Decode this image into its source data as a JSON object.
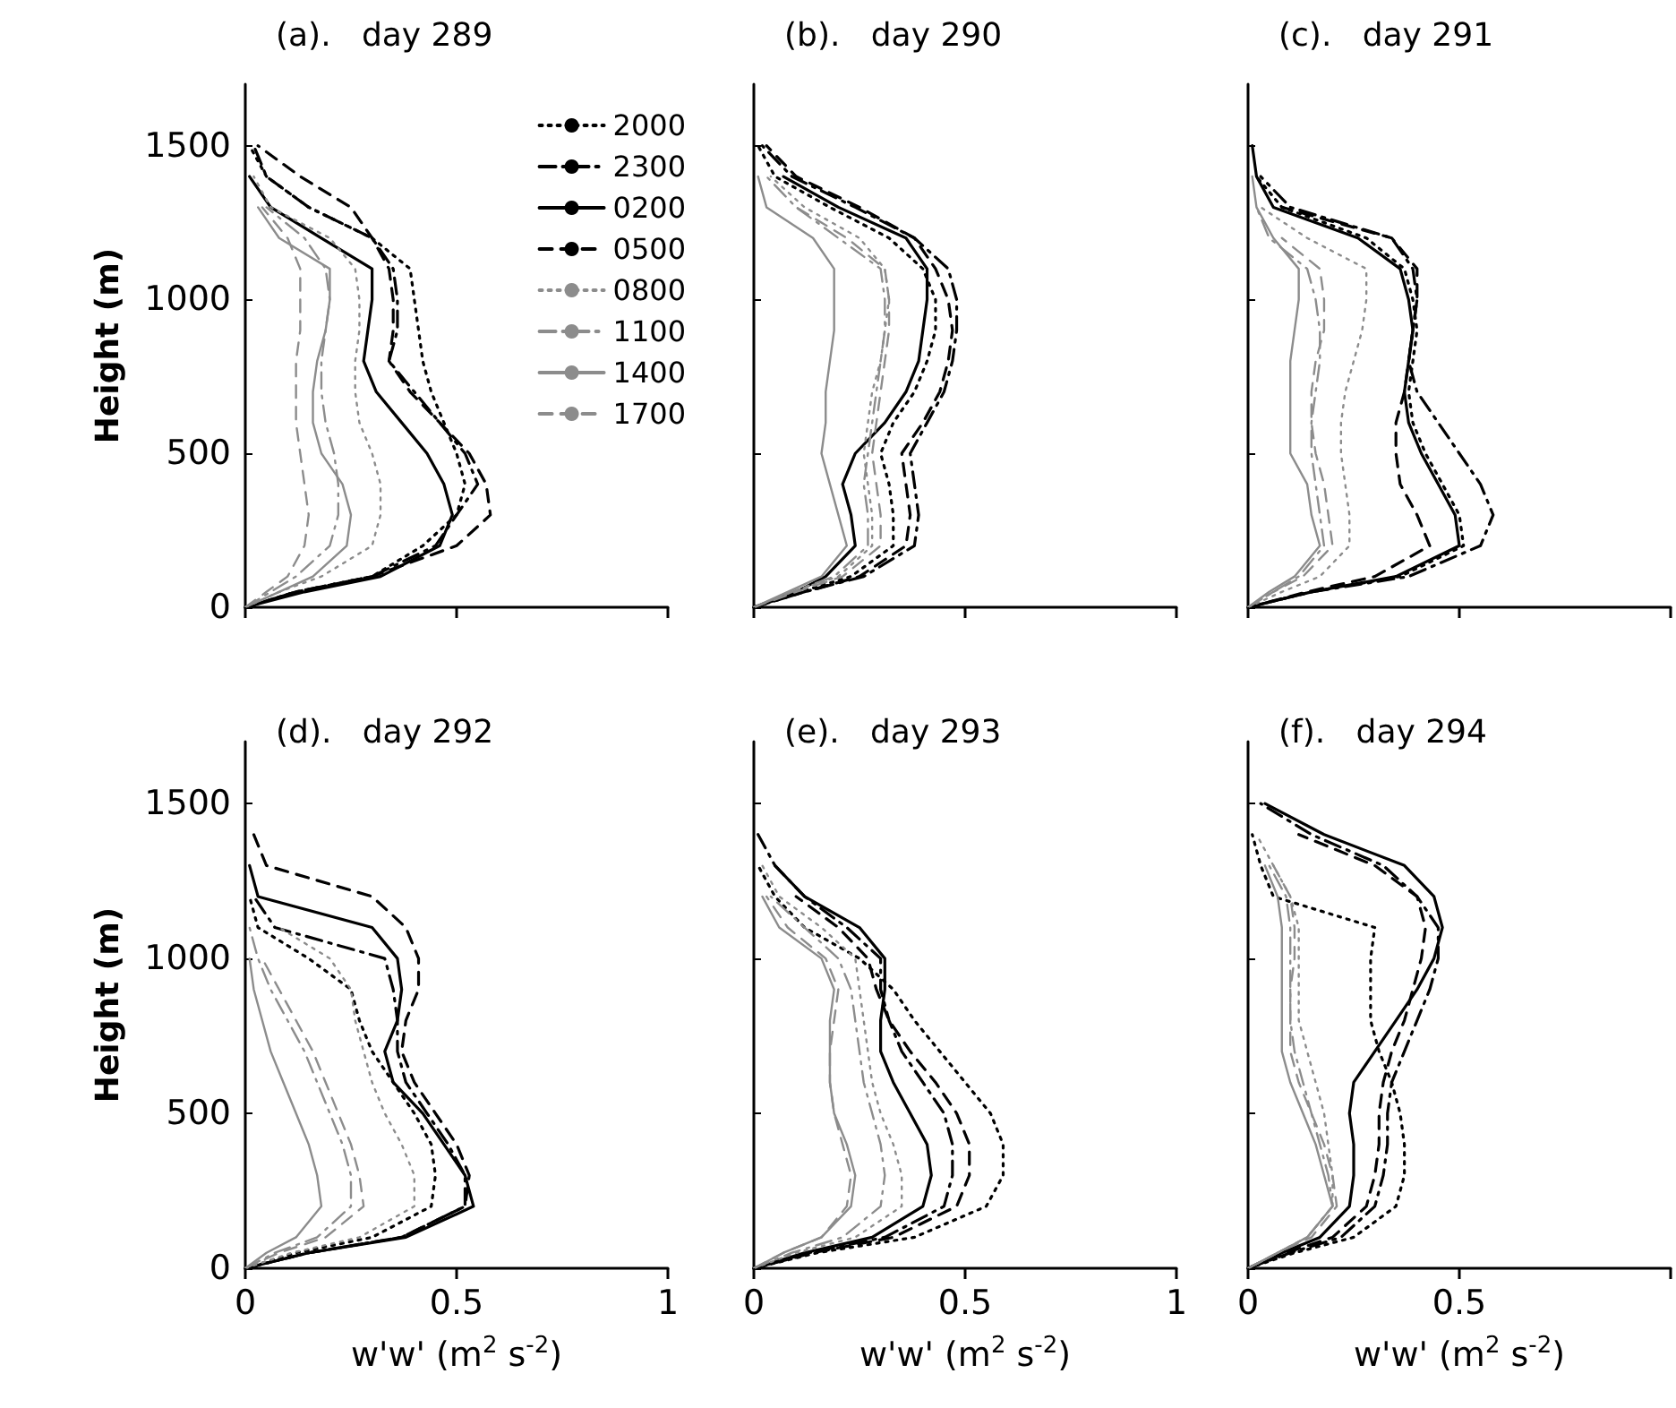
{
  "chart_data": [
    {
      "type": "line",
      "title": "(a).   day 289",
      "ylabel": "Height (m)",
      "xlim": [
        0,
        1
      ],
      "xticks": [
        0,
        0.5,
        1
      ],
      "ylim": [
        0,
        1700
      ],
      "yticks": [
        0,
        500,
        1000,
        1500
      ],
      "tick_labels": "y",
      "legend": "top right",
      "series": [
        {
          "name": "2000",
          "color": "#000000",
          "line_style": "dotted",
          "x": [
            0,
            0.12,
            0.3,
            0.42,
            0.5,
            0.52,
            0.5,
            0.47,
            0.44,
            0.42,
            0.41,
            0.4,
            0.39,
            0.3,
            0.15,
            0.05,
            0.01
          ],
          "values": [
            0,
            50,
            100,
            200,
            300,
            400,
            500,
            600,
            700,
            800,
            900,
            1000,
            1100,
            1200,
            1300,
            1400,
            1500
          ]
        },
        {
          "name": "2300",
          "color": "#000000",
          "line_style": "dashdot",
          "x": [
            0,
            0.12,
            0.3,
            0.45,
            0.5,
            0.55,
            0.52,
            0.46,
            0.4,
            0.34,
            0.36,
            0.36,
            0.35,
            0.3,
            0.15,
            0.05,
            0.02
          ],
          "values": [
            0,
            50,
            100,
            200,
            300,
            400,
            500,
            600,
            700,
            800,
            900,
            1000,
            1100,
            1200,
            1300,
            1400,
            1500
          ]
        },
        {
          "name": "0200",
          "color": "#000000",
          "line_style": "solid",
          "x": [
            0,
            0.14,
            0.32,
            0.46,
            0.49,
            0.47,
            0.43,
            0.37,
            0.31,
            0.28,
            0.29,
            0.3,
            0.3,
            0.18,
            0.06,
            0.01
          ],
          "values": [
            0,
            50,
            100,
            200,
            300,
            400,
            500,
            600,
            700,
            800,
            900,
            1000,
            1100,
            1200,
            1300,
            1400
          ]
        },
        {
          "name": "0500",
          "color": "#000000",
          "line_style": "dashed",
          "x": [
            0,
            0.12,
            0.3,
            0.5,
            0.58,
            0.57,
            0.53,
            0.46,
            0.39,
            0.34,
            0.35,
            0.35,
            0.34,
            0.3,
            0.25,
            0.13,
            0.03
          ],
          "values": [
            0,
            50,
            100,
            200,
            300,
            400,
            500,
            600,
            700,
            800,
            900,
            1000,
            1100,
            1200,
            1300,
            1400,
            1500
          ]
        },
        {
          "name": "0800",
          "color": "#8c8c8c",
          "line_style": "dotted",
          "x": [
            0,
            0.08,
            0.18,
            0.3,
            0.32,
            0.32,
            0.3,
            0.27,
            0.26,
            0.26,
            0.27,
            0.27,
            0.26,
            0.2,
            0.06,
            0.02
          ],
          "values": [
            0,
            50,
            100,
            200,
            300,
            400,
            500,
            600,
            700,
            800,
            900,
            1000,
            1100,
            1200,
            1300,
            1400
          ]
        },
        {
          "name": "1100",
          "color": "#8c8c8c",
          "line_style": "dashdot",
          "x": [
            0,
            0.06,
            0.12,
            0.2,
            0.22,
            0.22,
            0.21,
            0.19,
            0.18,
            0.18,
            0.19,
            0.2,
            0.19,
            0.14,
            0.05
          ],
          "values": [
            0,
            50,
            100,
            200,
            300,
            400,
            500,
            600,
            700,
            800,
            900,
            1000,
            1100,
            1200,
            1300
          ]
        },
        {
          "name": "1400",
          "color": "#8c8c8c",
          "line_style": "solid",
          "x": [
            0,
            0.08,
            0.16,
            0.24,
            0.25,
            0.23,
            0.18,
            0.16,
            0.16,
            0.17,
            0.19,
            0.2,
            0.2,
            0.08,
            0.03
          ],
          "values": [
            0,
            50,
            100,
            200,
            300,
            400,
            500,
            600,
            700,
            800,
            900,
            1000,
            1100,
            1200,
            1300
          ]
        },
        {
          "name": "1700",
          "color": "#8c8c8c",
          "line_style": "dashed",
          "x": [
            0,
            0.05,
            0.1,
            0.14,
            0.15,
            0.14,
            0.13,
            0.12,
            0.12,
            0.12,
            0.13,
            0.13,
            0.13,
            0.1,
            0.04
          ],
          "values": [
            0,
            50,
            100,
            200,
            300,
            400,
            500,
            600,
            700,
            800,
            900,
            1000,
            1100,
            1200,
            1300
          ]
        }
      ]
    },
    {
      "type": "line",
      "title": "(b).   day 290",
      "xlim": [
        0,
        1
      ],
      "xticks": [
        0,
        0.5,
        1
      ],
      "ylim": [
        0,
        1700
      ],
      "yticks": [
        0,
        500,
        1000,
        1500
      ],
      "tick_labels": false,
      "series": [
        {
          "color": "#000000",
          "line_style": "dotted",
          "x": [
            0,
            0.11,
            0.23,
            0.33,
            0.33,
            0.32,
            0.3,
            0.33,
            0.38,
            0.41,
            0.43,
            0.43,
            0.4,
            0.32,
            0.18,
            0.05,
            0.01
          ],
          "values": [
            0,
            50,
            100,
            200,
            300,
            400,
            500,
            600,
            700,
            800,
            900,
            1000,
            1100,
            1200,
            1300,
            1400,
            1500
          ]
        },
        {
          "color": "#000000",
          "line_style": "dashdot",
          "x": [
            0,
            0.12,
            0.26,
            0.38,
            0.39,
            0.38,
            0.37,
            0.41,
            0.45,
            0.47,
            0.48,
            0.48,
            0.46,
            0.38,
            0.24,
            0.09,
            0.02
          ],
          "values": [
            0,
            50,
            100,
            200,
            300,
            400,
            500,
            600,
            700,
            800,
            900,
            1000,
            1100,
            1200,
            1300,
            1400,
            1500
          ]
        },
        {
          "color": "#000000",
          "line_style": "solid",
          "x": [
            0,
            0.1,
            0.17,
            0.24,
            0.23,
            0.21,
            0.24,
            0.31,
            0.36,
            0.39,
            0.4,
            0.41,
            0.41,
            0.36,
            0.2,
            0.07
          ],
          "values": [
            0,
            50,
            100,
            200,
            300,
            400,
            500,
            600,
            700,
            800,
            900,
            1000,
            1100,
            1200,
            1300,
            1400
          ]
        },
        {
          "color": "#000000",
          "line_style": "dashed",
          "x": [
            0,
            0.12,
            0.25,
            0.36,
            0.37,
            0.36,
            0.35,
            0.4,
            0.44,
            0.46,
            0.47,
            0.46,
            0.43,
            0.38,
            0.25,
            0.1,
            0.03
          ],
          "values": [
            0,
            50,
            100,
            200,
            300,
            400,
            500,
            600,
            700,
            800,
            900,
            1000,
            1100,
            1200,
            1300,
            1400,
            1500
          ]
        },
        {
          "color": "#8c8c8c",
          "line_style": "dotted",
          "x": [
            0,
            0.09,
            0.2,
            0.28,
            0.28,
            0.27,
            0.26,
            0.27,
            0.28,
            0.3,
            0.31,
            0.32,
            0.31,
            0.25,
            0.12,
            0.04
          ],
          "values": [
            0,
            50,
            100,
            200,
            300,
            400,
            500,
            600,
            700,
            800,
            900,
            1000,
            1100,
            1200,
            1300,
            1400
          ]
        },
        {
          "color": "#8c8c8c",
          "line_style": "dashdot",
          "x": [
            0,
            0.09,
            0.19,
            0.27,
            0.27,
            0.26,
            0.27,
            0.28,
            0.29,
            0.3,
            0.31,
            0.31,
            0.3,
            0.2,
            0.1,
            0.03
          ],
          "values": [
            0,
            50,
            100,
            200,
            300,
            400,
            500,
            600,
            700,
            800,
            900,
            1000,
            1100,
            1200,
            1300,
            1400
          ]
        },
        {
          "color": "#8c8c8c",
          "line_style": "solid",
          "x": [
            0,
            0.08,
            0.16,
            0.22,
            0.2,
            0.18,
            0.16,
            0.17,
            0.17,
            0.18,
            0.19,
            0.19,
            0.19,
            0.14,
            0.03,
            0.01
          ],
          "values": [
            0,
            50,
            100,
            200,
            300,
            400,
            500,
            600,
            700,
            800,
            900,
            1000,
            1100,
            1200,
            1300,
            1400
          ]
        },
        {
          "color": "#8c8c8c",
          "line_style": "dashed",
          "x": [
            0,
            0.1,
            0.21,
            0.3,
            0.3,
            0.29,
            0.28,
            0.29,
            0.3,
            0.31,
            0.32,
            0.32,
            0.31,
            0.22,
            0.1
          ],
          "values": [
            0,
            50,
            100,
            200,
            300,
            400,
            500,
            600,
            700,
            800,
            900,
            1000,
            1100,
            1200,
            1300
          ]
        }
      ]
    },
    {
      "type": "line",
      "title": "(c).   day 291",
      "xlim": [
        0,
        1
      ],
      "xticks": [
        0,
        0.5,
        1
      ],
      "ylim": [
        0,
        1700
      ],
      "yticks": [
        0,
        500,
        1000,
        1500
      ],
      "tick_labels": false,
      "series": [
        {
          "color": "#000000",
          "line_style": "dotted",
          "x": [
            0,
            0.15,
            0.36,
            0.51,
            0.5,
            0.46,
            0.42,
            0.39,
            0.38,
            0.39,
            0.4,
            0.39,
            0.37,
            0.28,
            0.08,
            0.02
          ],
          "values": [
            0,
            50,
            100,
            200,
            300,
            400,
            500,
            600,
            700,
            800,
            900,
            1000,
            1100,
            1200,
            1300,
            1400
          ]
        },
        {
          "color": "#000000",
          "line_style": "dashdot",
          "x": [
            0,
            0.15,
            0.38,
            0.55,
            0.58,
            0.55,
            0.5,
            0.45,
            0.4,
            0.38,
            0.39,
            0.4,
            0.39,
            0.34,
            0.1,
            0.03
          ],
          "values": [
            0,
            50,
            100,
            200,
            300,
            400,
            500,
            600,
            700,
            800,
            900,
            1000,
            1100,
            1200,
            1300,
            1400
          ]
        },
        {
          "color": "#000000",
          "line_style": "solid",
          "x": [
            0,
            0.15,
            0.35,
            0.5,
            0.49,
            0.45,
            0.41,
            0.38,
            0.37,
            0.38,
            0.39,
            0.38,
            0.36,
            0.26,
            0.06,
            0.02,
            0.01
          ],
          "values": [
            0,
            50,
            100,
            200,
            300,
            400,
            500,
            600,
            700,
            800,
            900,
            1000,
            1100,
            1200,
            1300,
            1400,
            1500
          ]
        },
        {
          "color": "#000000",
          "line_style": "dashed",
          "x": [
            0,
            0.14,
            0.3,
            0.43,
            0.4,
            0.36,
            0.35,
            0.35,
            0.37,
            0.38,
            0.39,
            0.4,
            0.4,
            0.34,
            0.08
          ],
          "values": [
            0,
            50,
            100,
            200,
            300,
            400,
            500,
            600,
            700,
            800,
            900,
            1000,
            1100,
            1200,
            1300
          ]
        },
        {
          "color": "#8c8c8c",
          "line_style": "dotted",
          "x": [
            0,
            0.08,
            0.17,
            0.24,
            0.24,
            0.23,
            0.22,
            0.22,
            0.23,
            0.25,
            0.27,
            0.28,
            0.28,
            0.14,
            0.03
          ],
          "values": [
            0,
            50,
            100,
            200,
            300,
            400,
            500,
            600,
            700,
            800,
            900,
            1000,
            1100,
            1200,
            1300
          ]
        },
        {
          "color": "#8c8c8c",
          "line_style": "dashdot",
          "x": [
            0,
            0.06,
            0.12,
            0.18,
            0.17,
            0.16,
            0.15,
            0.15,
            0.16,
            0.17,
            0.17,
            0.16,
            0.14,
            0.05,
            0.02
          ],
          "values": [
            0,
            50,
            100,
            200,
            300,
            400,
            500,
            600,
            700,
            800,
            900,
            1000,
            1100,
            1200,
            1300
          ]
        },
        {
          "color": "#8c8c8c",
          "line_style": "solid",
          "x": [
            0,
            0.05,
            0.11,
            0.17,
            0.15,
            0.14,
            0.1,
            0.1,
            0.1,
            0.1,
            0.11,
            0.12,
            0.12,
            0.06,
            0.02,
            0.01
          ],
          "values": [
            0,
            50,
            100,
            200,
            300,
            400,
            500,
            600,
            700,
            800,
            900,
            1000,
            1100,
            1200,
            1300,
            1400
          ]
        },
        {
          "color": "#8c8c8c",
          "line_style": "dashed",
          "x": [
            0,
            0.06,
            0.13,
            0.2,
            0.19,
            0.18,
            0.16,
            0.15,
            0.15,
            0.16,
            0.18,
            0.18,
            0.17,
            0.08
          ],
          "values": [
            0,
            50,
            100,
            200,
            300,
            400,
            500,
            600,
            700,
            800,
            900,
            1000,
            1100,
            1200
          ]
        }
      ]
    },
    {
      "type": "line",
      "title": "(d).   day 292",
      "xlabel": "w'w' (m$^{2}$ s$^{-2}$)",
      "ylabel": "Height (m)",
      "xlim": [
        0,
        1
      ],
      "xticks": [
        0,
        0.5,
        1
      ],
      "ylim": [
        0,
        1700
      ],
      "yticks": [
        0,
        500,
        1000,
        1500
      ],
      "series": [
        {
          "color": "#000000",
          "line_style": "dotted",
          "x": [
            0,
            0.12,
            0.3,
            0.44,
            0.45,
            0.44,
            0.4,
            0.35,
            0.3,
            0.27,
            0.25,
            0.15,
            0.03,
            0.01
          ],
          "values": [
            0,
            50,
            100,
            200,
            300,
            400,
            500,
            600,
            700,
            800,
            900,
            1000,
            1100,
            1200
          ]
        },
        {
          "color": "#000000",
          "line_style": "dashdot",
          "x": [
            0,
            0.15,
            0.37,
            0.52,
            0.52,
            0.48,
            0.43,
            0.38,
            0.36,
            0.36,
            0.35,
            0.33,
            0.07,
            0.02
          ],
          "values": [
            0,
            50,
            100,
            200,
            300,
            400,
            500,
            600,
            700,
            800,
            900,
            1000,
            1100,
            1200
          ]
        },
        {
          "color": "#000000",
          "line_style": "solid",
          "x": [
            0,
            0.15,
            0.38,
            0.54,
            0.52,
            0.47,
            0.42,
            0.35,
            0.33,
            0.36,
            0.37,
            0.36,
            0.3,
            0.03,
            0.01
          ],
          "values": [
            0,
            50,
            100,
            200,
            300,
            400,
            500,
            600,
            700,
            800,
            900,
            1000,
            1100,
            1200,
            1300
          ]
        },
        {
          "color": "#000000",
          "line_style": "dashed",
          "x": [
            0,
            0.15,
            0.37,
            0.52,
            0.53,
            0.5,
            0.45,
            0.4,
            0.37,
            0.38,
            0.41,
            0.41,
            0.38,
            0.3,
            0.05,
            0.02
          ],
          "values": [
            0,
            50,
            100,
            200,
            300,
            400,
            500,
            600,
            700,
            800,
            900,
            1000,
            1100,
            1200,
            1300,
            1400
          ]
        },
        {
          "color": "#8c8c8c",
          "line_style": "dotted",
          "x": [
            0,
            0.11,
            0.27,
            0.4,
            0.4,
            0.37,
            0.33,
            0.3,
            0.28,
            0.26,
            0.25,
            0.2,
            0.08
          ],
          "values": [
            0,
            50,
            100,
            200,
            300,
            400,
            500,
            600,
            700,
            800,
            900,
            1000,
            1100
          ]
        },
        {
          "color": "#8c8c8c",
          "line_style": "dashdot",
          "x": [
            0,
            0.07,
            0.17,
            0.25,
            0.25,
            0.23,
            0.2,
            0.17,
            0.14,
            0.1,
            0.06,
            0.03,
            0.01
          ],
          "values": [
            0,
            50,
            100,
            200,
            300,
            400,
            500,
            600,
            700,
            800,
            900,
            1000,
            1100
          ]
        },
        {
          "color": "#8c8c8c",
          "line_style": "solid",
          "x": [
            0,
            0.05,
            0.12,
            0.18,
            0.17,
            0.15,
            0.12,
            0.09,
            0.06,
            0.04,
            0.02,
            0.01
          ],
          "values": [
            0,
            50,
            100,
            200,
            300,
            400,
            500,
            600,
            700,
            800,
            900,
            1000
          ]
        },
        {
          "color": "#8c8c8c",
          "line_style": "dashed",
          "x": [
            0,
            0.08,
            0.19,
            0.28,
            0.27,
            0.25,
            0.22,
            0.19,
            0.16,
            0.12,
            0.08,
            0.04
          ],
          "values": [
            0,
            50,
            100,
            200,
            300,
            400,
            500,
            600,
            700,
            800,
            900,
            1000
          ]
        }
      ]
    },
    {
      "type": "line",
      "title": "(e).   day 293",
      "xlabel": "w'w' (m$^{2}$ s$^{-2}$)",
      "xlim": [
        0,
        1
      ],
      "xticks": [
        0,
        0.5,
        1
      ],
      "ylim": [
        0,
        1700
      ],
      "yticks": [
        0,
        500,
        1000,
        1500
      ],
      "tick_labels": "x",
      "series": [
        {
          "color": "#000000",
          "line_style": "dotted",
          "x": [
            0,
            0.15,
            0.38,
            0.55,
            0.59,
            0.59,
            0.56,
            0.5,
            0.44,
            0.38,
            0.33,
            0.25,
            0.12,
            0.05,
            0.01
          ],
          "values": [
            0,
            50,
            100,
            200,
            300,
            400,
            500,
            600,
            700,
            800,
            900,
            1000,
            1100,
            1200,
            1300
          ]
        },
        {
          "color": "#000000",
          "line_style": "dashdot",
          "x": [
            0,
            0.13,
            0.31,
            0.45,
            0.47,
            0.47,
            0.45,
            0.4,
            0.35,
            0.32,
            0.3,
            0.3,
            0.22,
            0.12,
            0.05,
            0.01
          ],
          "values": [
            0,
            50,
            100,
            200,
            300,
            400,
            500,
            600,
            700,
            800,
            900,
            1000,
            1100,
            1200,
            1300,
            1400
          ]
        },
        {
          "color": "#000000",
          "line_style": "solid",
          "x": [
            0,
            0.12,
            0.28,
            0.4,
            0.42,
            0.41,
            0.37,
            0.33,
            0.3,
            0.3,
            0.31,
            0.31,
            0.25,
            0.12,
            0.05
          ],
          "values": [
            0,
            50,
            100,
            200,
            300,
            400,
            500,
            600,
            700,
            800,
            900,
            1000,
            1100,
            1200,
            1300
          ]
        },
        {
          "color": "#000000",
          "line_style": "dashed",
          "x": [
            0,
            0.14,
            0.33,
            0.48,
            0.51,
            0.51,
            0.48,
            0.43,
            0.37,
            0.32,
            0.29,
            0.27,
            0.2,
            0.1
          ],
          "values": [
            0,
            50,
            100,
            200,
            300,
            400,
            500,
            600,
            700,
            800,
            900,
            1000,
            1100,
            1200
          ]
        },
        {
          "color": "#8c8c8c",
          "line_style": "dotted",
          "x": [
            0,
            0.1,
            0.24,
            0.35,
            0.35,
            0.33,
            0.3,
            0.28,
            0.27,
            0.26,
            0.25,
            0.24,
            0.16,
            0.06,
            0.02
          ],
          "values": [
            0,
            50,
            100,
            200,
            300,
            400,
            500,
            600,
            700,
            800,
            900,
            1000,
            1100,
            1200,
            1300
          ]
        },
        {
          "color": "#8c8c8c",
          "line_style": "dashdot",
          "x": [
            0,
            0.09,
            0.21,
            0.3,
            0.31,
            0.3,
            0.28,
            0.26,
            0.25,
            0.24,
            0.23,
            0.2,
            0.12,
            0.04
          ],
          "values": [
            0,
            50,
            100,
            200,
            300,
            400,
            500,
            600,
            700,
            800,
            900,
            1000,
            1100,
            1200
          ]
        },
        {
          "color": "#8c8c8c",
          "line_style": "solid",
          "x": [
            0,
            0.07,
            0.16,
            0.23,
            0.24,
            0.22,
            0.19,
            0.18,
            0.18,
            0.18,
            0.19,
            0.16,
            0.06,
            0.02
          ],
          "values": [
            0,
            50,
            100,
            200,
            300,
            400,
            500,
            600,
            700,
            800,
            900,
            1000,
            1100,
            1200
          ]
        },
        {
          "color": "#8c8c8c",
          "line_style": "dashed",
          "x": [
            0,
            0.07,
            0.16,
            0.22,
            0.23,
            0.21,
            0.19,
            0.18,
            0.18,
            0.19,
            0.2,
            0.17,
            0.08,
            0.03
          ],
          "values": [
            0,
            50,
            100,
            200,
            300,
            400,
            500,
            600,
            700,
            800,
            900,
            1000,
            1100,
            1200
          ]
        }
      ]
    },
    {
      "type": "line",
      "title": "(f).   day 294",
      "xlabel": "w'w' (m$^{2}$ s$^{-2}$)",
      "xlim": [
        0,
        1
      ],
      "xticks": [
        0,
        0.5,
        {
          "value": 1,
          "label": null
        }
      ],
      "ylim": [
        0,
        1700
      ],
      "yticks": [
        0,
        500,
        1000,
        1500
      ],
      "tick_labels": "x",
      "series": [
        {
          "color": "#000000",
          "line_style": "dotted",
          "x": [
            0,
            0.11,
            0.25,
            0.35,
            0.37,
            0.37,
            0.36,
            0.34,
            0.31,
            0.29,
            0.29,
            0.29,
            0.3,
            0.06,
            0.03,
            0.01
          ],
          "values": [
            0,
            50,
            100,
            200,
            300,
            400,
            500,
            600,
            700,
            800,
            900,
            1000,
            1100,
            1200,
            1300,
            1400
          ]
        },
        {
          "color": "#000000",
          "line_style": "dashdot",
          "x": [
            0,
            0.1,
            0.22,
            0.3,
            0.32,
            0.33,
            0.33,
            0.34,
            0.37,
            0.4,
            0.43,
            0.45,
            0.45,
            0.4,
            0.32,
            0.15,
            0.03
          ],
          "values": [
            0,
            50,
            100,
            200,
            300,
            400,
            500,
            600,
            700,
            800,
            900,
            1000,
            1100,
            1200,
            1300,
            1400,
            1500
          ]
        },
        {
          "color": "#000000",
          "line_style": "solid",
          "x": [
            0,
            0.08,
            0.17,
            0.24,
            0.25,
            0.25,
            0.24,
            0.25,
            0.3,
            0.35,
            0.4,
            0.44,
            0.46,
            0.44,
            0.37,
            0.18,
            0.04
          ],
          "values": [
            0,
            50,
            100,
            200,
            300,
            400,
            500,
            600,
            700,
            800,
            900,
            1000,
            1100,
            1200,
            1300,
            1400,
            1500
          ]
        },
        {
          "color": "#000000",
          "line_style": "dashed",
          "x": [
            0,
            0.09,
            0.2,
            0.28,
            0.3,
            0.31,
            0.31,
            0.32,
            0.34,
            0.37,
            0.39,
            0.41,
            0.42,
            0.4,
            0.3,
            0.12
          ],
          "values": [
            0,
            50,
            100,
            200,
            300,
            400,
            500,
            600,
            700,
            800,
            900,
            1000,
            1100,
            1200,
            1300,
            1400
          ]
        },
        {
          "color": "#8c8c8c",
          "line_style": "dotted",
          "x": [
            0,
            0.07,
            0.14,
            0.2,
            0.2,
            0.19,
            0.18,
            0.16,
            0.14,
            0.12,
            0.12,
            0.12,
            0.12,
            0.1,
            0.06,
            0.02
          ],
          "values": [
            0,
            50,
            100,
            200,
            300,
            400,
            500,
            600,
            700,
            800,
            900,
            1000,
            1100,
            1200,
            1300,
            1400
          ]
        },
        {
          "color": "#8c8c8c",
          "line_style": "dashdot",
          "x": [
            0,
            0.07,
            0.14,
            0.2,
            0.19,
            0.17,
            0.15,
            0.13,
            0.11,
            0.1,
            0.1,
            0.1,
            0.1,
            0.09,
            0.05
          ],
          "values": [
            0,
            50,
            100,
            200,
            300,
            400,
            500,
            600,
            700,
            800,
            900,
            1000,
            1100,
            1200,
            1300
          ]
        },
        {
          "color": "#8c8c8c",
          "line_style": "solid",
          "x": [
            0,
            0.07,
            0.14,
            0.2,
            0.18,
            0.16,
            0.13,
            0.1,
            0.08,
            0.08,
            0.08,
            0.08,
            0.08,
            0.07,
            0.04
          ],
          "values": [
            0,
            50,
            100,
            200,
            300,
            400,
            500,
            600,
            700,
            800,
            900,
            1000,
            1100,
            1200,
            1300
          ]
        },
        {
          "color": "#8c8c8c",
          "line_style": "dashed",
          "x": [
            0,
            0.07,
            0.15,
            0.21,
            0.2,
            0.18,
            0.15,
            0.12,
            0.1,
            0.1,
            0.1,
            0.11,
            0.11,
            0.1,
            0.06
          ],
          "values": [
            0,
            50,
            100,
            200,
            300,
            400,
            500,
            600,
            700,
            800,
            900,
            1000,
            1100,
            1200,
            1300
          ]
        }
      ]
    }
  ]
}
